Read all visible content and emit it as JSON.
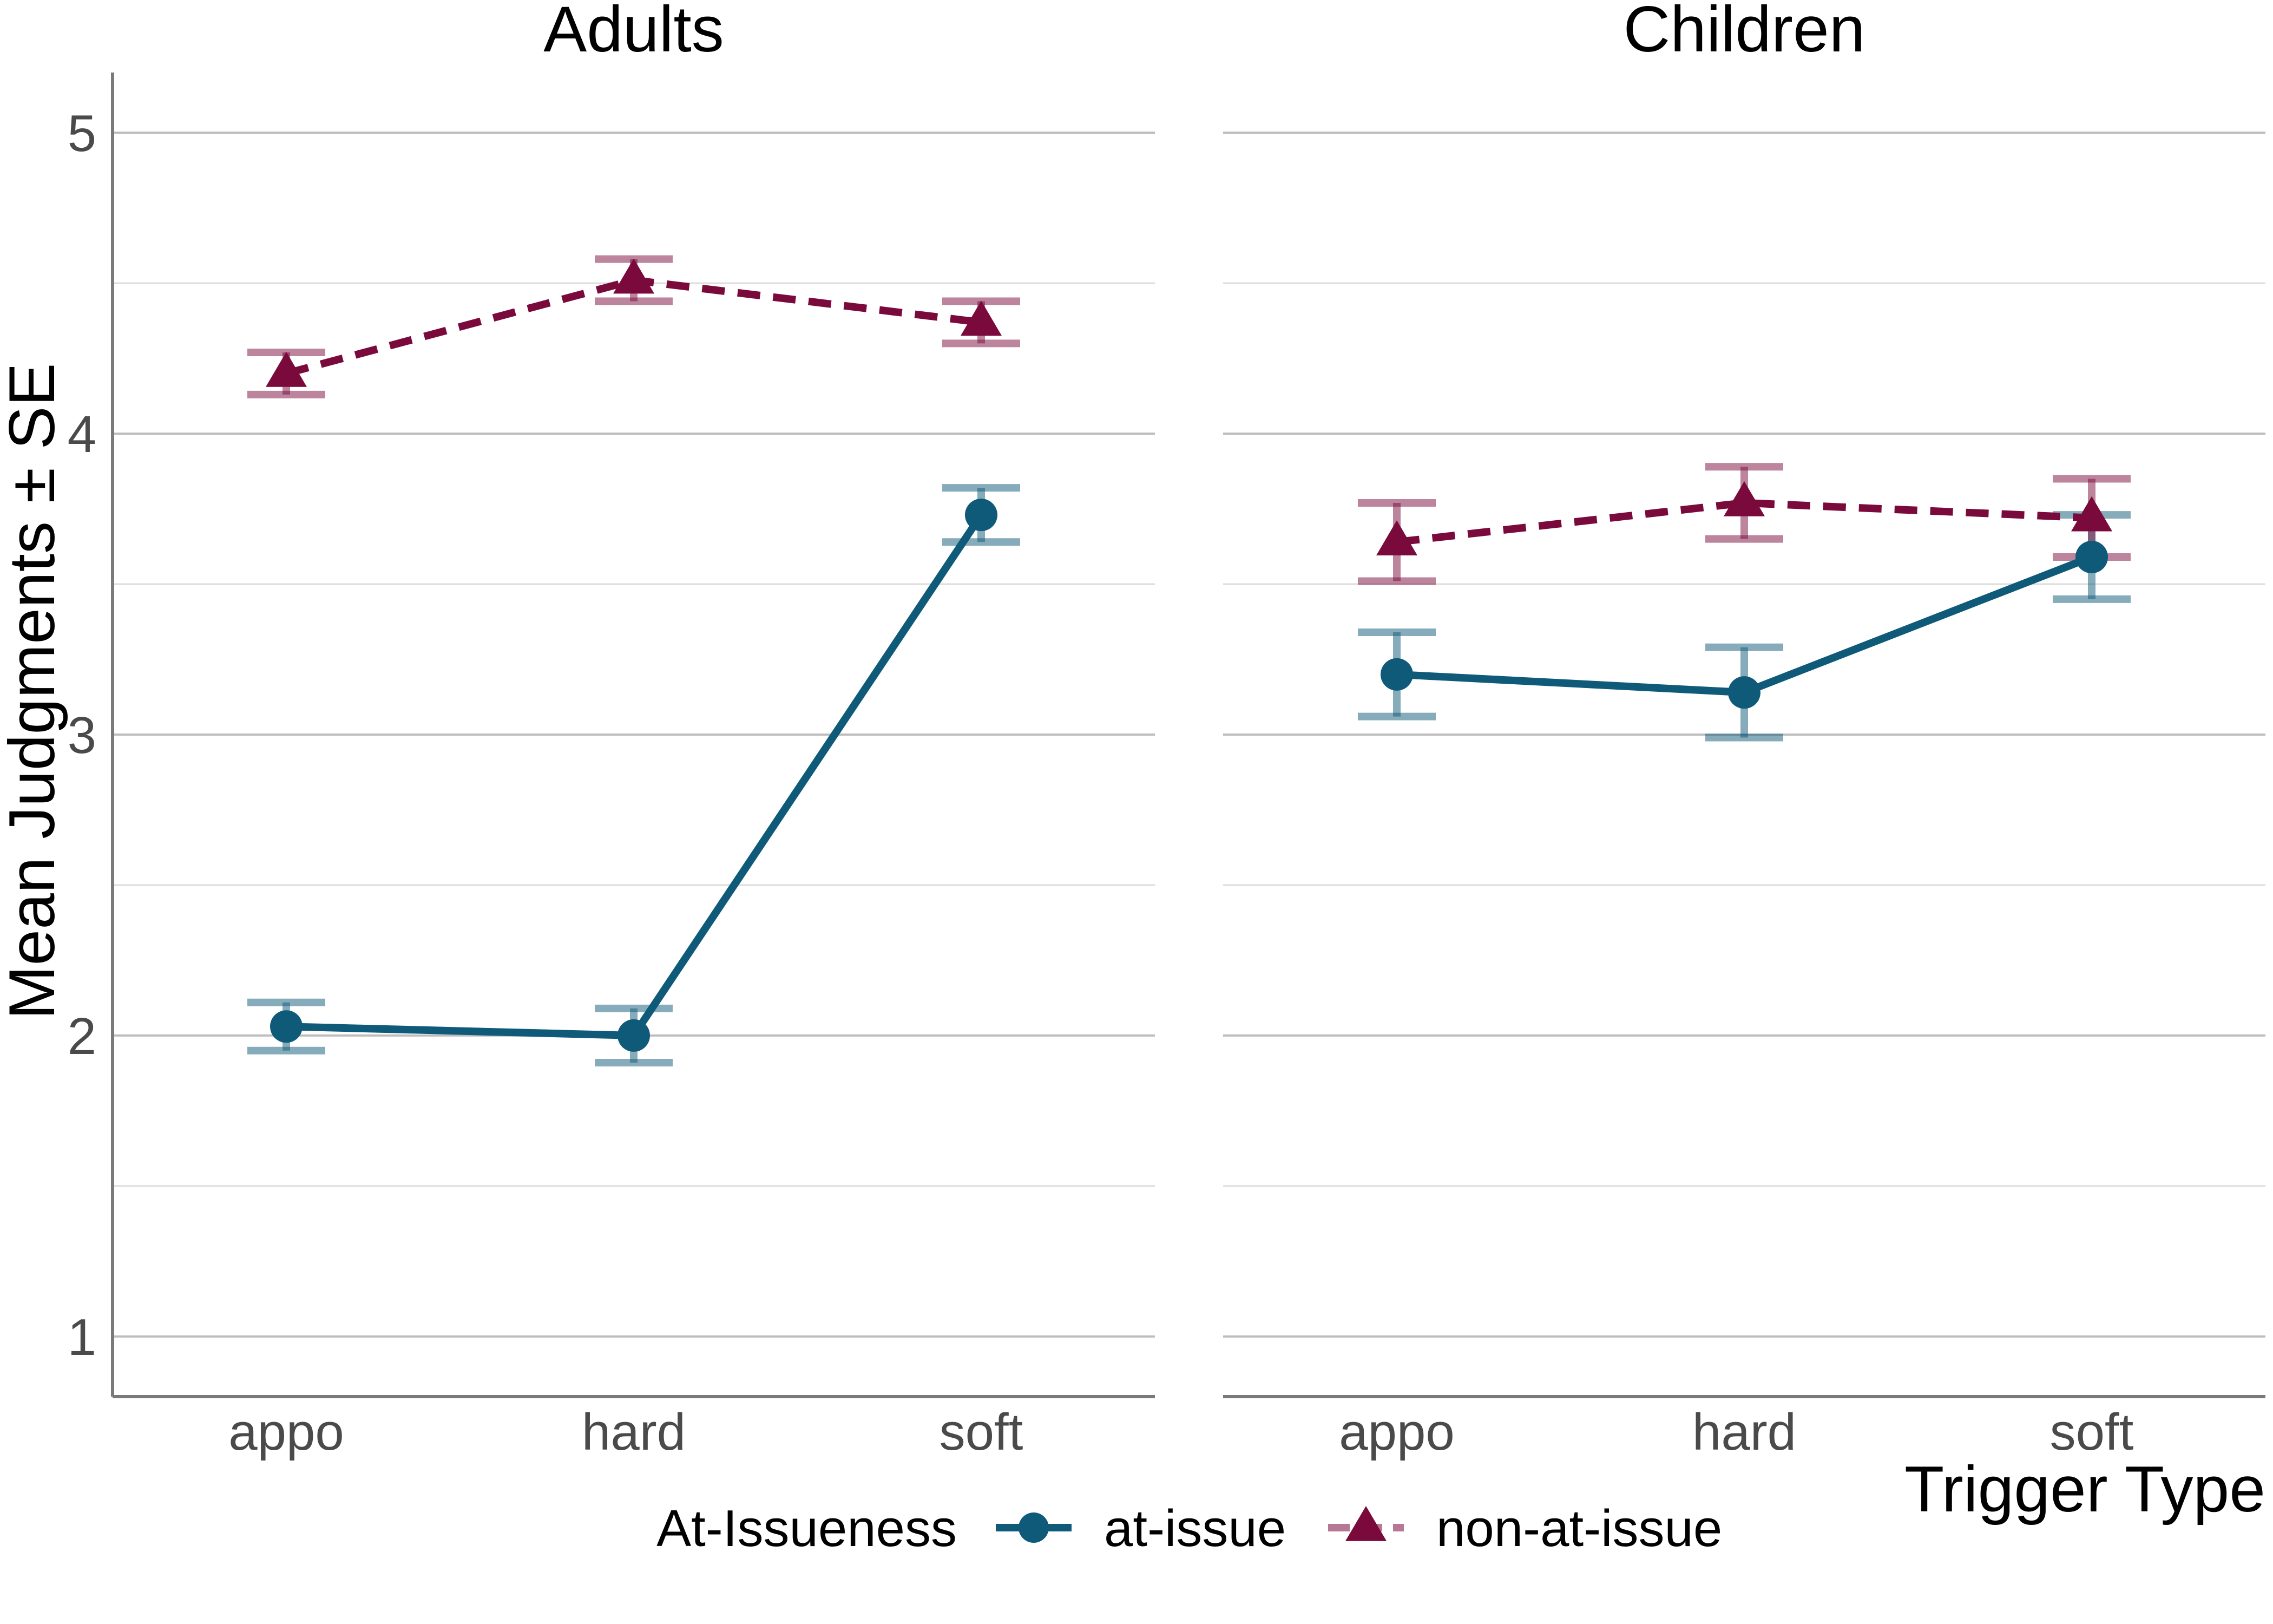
{
  "chart_data": {
    "type": "line",
    "panels": [
      "Adults",
      "Children"
    ],
    "categories": [
      "appo",
      "hard",
      "soft"
    ],
    "xlabel": "Trigger Type",
    "ylabel": "Mean Judgments ± SE",
    "ylim": [
      0.8,
      5.2
    ],
    "yticks": [
      1,
      2,
      3,
      4,
      5
    ],
    "y_minor_gridlines": [
      1.5,
      2.5,
      3.5,
      4.5
    ],
    "grid": "horizontal",
    "legend": {
      "title": "At-Issueness",
      "position": "bottom",
      "entries": [
        "at-issue",
        "non-at-issue"
      ]
    },
    "series": [
      {
        "name": "at-issue",
        "color": "#0e5a78",
        "marker": "circle",
        "linestyle": "solid",
        "values": {
          "Adults": [
            2.03,
            2.0,
            3.73
          ],
          "Children": [
            3.2,
            3.14,
            3.59
          ]
        },
        "errors": {
          "Adults": [
            0.08,
            0.09,
            0.09
          ],
          "Children": [
            0.14,
            0.15,
            0.14
          ]
        }
      },
      {
        "name": "non-at-issue",
        "color": "#7a0a3c",
        "marker": "triangle",
        "linestyle": "dashed",
        "values": {
          "Adults": [
            4.2,
            4.51,
            4.37
          ],
          "Children": [
            3.64,
            3.77,
            3.72
          ]
        },
        "errors": {
          "Adults": [
            0.07,
            0.07,
            0.07
          ],
          "Children": [
            0.13,
            0.12,
            0.13
          ]
        }
      }
    ]
  }
}
